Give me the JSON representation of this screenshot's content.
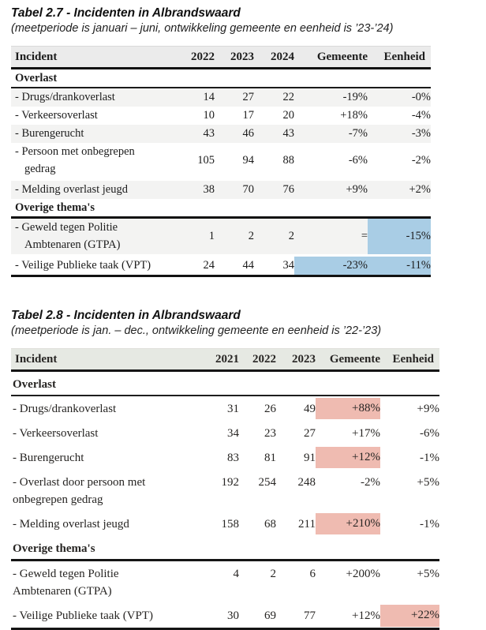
{
  "colors": {
    "blue_highlight": "#A9CDE5",
    "pink_highlight": "#F2BDB3",
    "header_bg": "#EBEBEB",
    "scan_header_bg": "#E9ECE6",
    "stripe_bg": "#F3F3F2"
  },
  "tables": [
    {
      "title": "Tabel 2.7 - Incidenten in Albrandswaard",
      "subtitle": "(meetperiode is januari – juni, ontwikkeling gemeente en eenheid is ’23-’24)",
      "columns": [
        "Incident",
        "2022",
        "2023",
        "2024",
        "Gemeente",
        "Eenheid"
      ],
      "sections": [
        {
          "label": "Overlast",
          "rows": [
            {
              "label_lines": [
                "- Drugs/drankoverlast"
              ],
              "values": [
                "14",
                "27",
                "22",
                "-19%",
                "-0%"
              ],
              "striped": true,
              "highlights": {}
            },
            {
              "label_lines": [
                "- Verkeersoverlast"
              ],
              "values": [
                "10",
                "17",
                "20",
                "+18%",
                "-4%"
              ],
              "striped": false,
              "highlights": {}
            },
            {
              "label_lines": [
                "- Burengerucht"
              ],
              "values": [
                "43",
                "46",
                "43",
                "-7%",
                "-3%"
              ],
              "striped": true,
              "highlights": {}
            },
            {
              "label_lines": [
                "- Persoon met onbegrepen",
                "gedrag"
              ],
              "values": [
                "105",
                "94",
                "88",
                "-6%",
                "-2%"
              ],
              "striped": false,
              "highlights": {}
            },
            {
              "label_lines": [
                "- Melding overlast jeugd"
              ],
              "values": [
                "38",
                "70",
                "76",
                "+9%",
                "+2%"
              ],
              "striped": true,
              "highlights": {}
            }
          ]
        },
        {
          "label": "Overige thema's",
          "rows": [
            {
              "label_lines": [
                "- Geweld tegen Politie",
                "Ambtenaren (GTPA)"
              ],
              "values": [
                "1",
                "2",
                "2",
                "=",
                "-15%"
              ],
              "striped": true,
              "highlights": {
                "4": "blue"
              }
            },
            {
              "label_lines": [
                "- Veilige Publieke taak (VPT)"
              ],
              "values": [
                "24",
                "44",
                "34",
                "-23%",
                "-11%"
              ],
              "striped": false,
              "highlights": {
                "3": "blue",
                "4": "blue"
              }
            }
          ]
        }
      ]
    },
    {
      "title": "Tabel 2.8 - Incidenten in Albrandswaard",
      "subtitle": "(meetperiode is jan. – dec., ontwikkeling gemeente en eenheid is ’22-’23)",
      "columns": [
        "Incident",
        "2021",
        "2022",
        "2023",
        "Gemeente",
        "Eenheid"
      ],
      "sections": [
        {
          "label": "Overlast",
          "rows": [
            {
              "label_lines": [
                "- Drugs/drankoverlast"
              ],
              "values": [
                "31",
                "26",
                "49",
                "+88%",
                "+9%"
              ],
              "striped": false,
              "highlights": {
                "3": "pink"
              }
            },
            {
              "label_lines": [
                "- Verkeersoverlast"
              ],
              "values": [
                "34",
                "23",
                "27",
                "+17%",
                "-6%"
              ],
              "striped": false,
              "highlights": {}
            },
            {
              "label_lines": [
                "- Burengerucht"
              ],
              "values": [
                "83",
                "81",
                "91",
                "+12%",
                "-1%"
              ],
              "striped": false,
              "highlights": {
                "3": "pink"
              }
            },
            {
              "label_lines": [
                "- Overlast door persoon met",
                "onbegrepen gedrag"
              ],
              "values": [
                "192",
                "254",
                "248",
                "-2%",
                "+5%"
              ],
              "striped": false,
              "highlights": {}
            },
            {
              "label_lines": [
                "- Melding overlast jeugd"
              ],
              "values": [
                "158",
                "68",
                "211",
                "+210%",
                "-1%"
              ],
              "striped": false,
              "highlights": {
                "3": "pink"
              }
            }
          ]
        },
        {
          "label": "Overige thema's",
          "rows": [
            {
              "label_lines": [
                "- Geweld tegen Politie",
                "Ambtenaren (GTPA)"
              ],
              "values": [
                "4",
                "2",
                "6",
                "+200%",
                "+5%"
              ],
              "striped": false,
              "highlights": {}
            },
            {
              "label_lines": [
                "- Veilige Publieke taak (VPT)"
              ],
              "values": [
                "30",
                "69",
                "77",
                "+12%",
                "+22%"
              ],
              "striped": false,
              "highlights": {
                "4": "pink"
              }
            }
          ]
        }
      ]
    }
  ]
}
